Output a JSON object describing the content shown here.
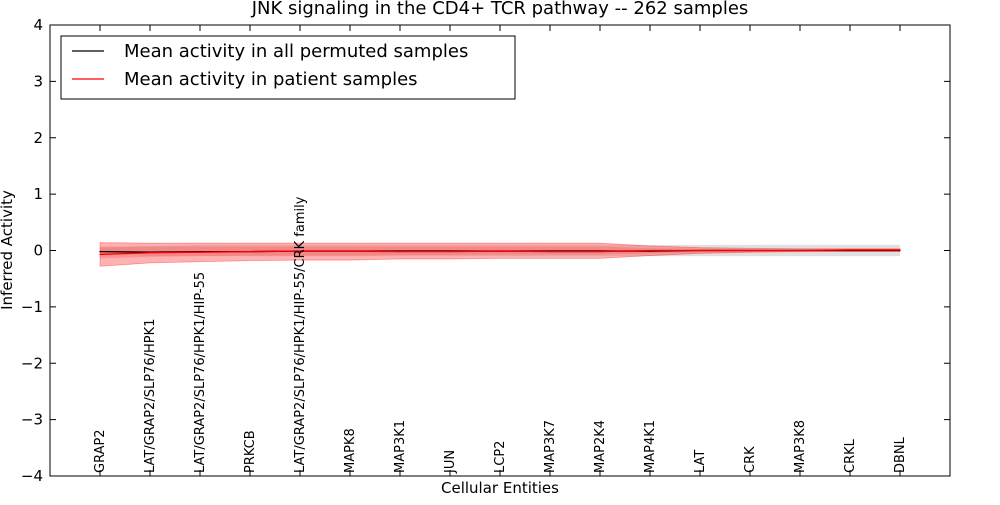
{
  "chart_data": {
    "type": "line",
    "title": "JNK signaling in the CD4+ TCR pathway -- 262 samples",
    "xlabel": "Cellular Entities",
    "ylabel": "Inferred Activity",
    "ylim": [
      -4,
      4
    ],
    "yticks": [
      -4,
      -3,
      -2,
      -1,
      0,
      1,
      2,
      3,
      4
    ],
    "ytick_labels": [
      "−4",
      "−3",
      "−2",
      "−1",
      "0",
      "1",
      "2",
      "3",
      "4"
    ],
    "legend_position": "top-left",
    "grid": false,
    "categories": [
      "GRAP2",
      "LAT/GRAP2/SLP76/HPK1",
      "LAT/GRAP2/SLP76/HPK1/HIP-55",
      "PRKCB",
      "LAT/GRAP2/SLP76/HPK1/HIP-55/CRK family",
      "MAPK8",
      "MAP3K1",
      "JUN",
      "LCP2",
      "MAP3K7",
      "MAP2K4",
      "MAP4K1",
      "LAT",
      "CRK",
      "MAP3K8",
      "CRKL",
      "DBNL"
    ],
    "series": [
      {
        "name": "Mean activity in all permuted samples",
        "color": "#000000",
        "values": [
          -0.02,
          -0.03,
          -0.02,
          -0.02,
          -0.01,
          -0.01,
          -0.01,
          -0.01,
          -0.01,
          -0.01,
          -0.01,
          -0.01,
          0.0,
          0.0,
          0.0,
          0.0,
          0.0
        ],
        "band_lower": [
          -0.05,
          -0.1,
          -0.1,
          -0.1,
          -0.1,
          -0.1,
          -0.1,
          -0.1,
          -0.1,
          -0.1,
          -0.1,
          -0.1,
          -0.1,
          -0.1,
          -0.1,
          -0.1,
          -0.1
        ],
        "band_upper": [
          0.05,
          0.08,
          0.1,
          0.1,
          0.1,
          0.1,
          0.1,
          0.1,
          0.1,
          0.1,
          0.1,
          0.1,
          0.1,
          0.1,
          0.1,
          0.1,
          0.1
        ],
        "band_color": "#bbbbbb"
      },
      {
        "name": "Mean activity in patient samples",
        "color": "#ff0000",
        "values": [
          -0.07,
          -0.04,
          -0.03,
          -0.02,
          -0.01,
          -0.01,
          -0.02,
          -0.02,
          -0.01,
          -0.02,
          -0.02,
          0.0,
          0.0,
          0.0,
          0.0,
          0.01,
          0.01
        ],
        "band_lower": [
          -0.28,
          -0.22,
          -0.2,
          -0.18,
          -0.17,
          -0.17,
          -0.15,
          -0.15,
          -0.14,
          -0.14,
          -0.14,
          -0.09,
          -0.05,
          -0.03,
          -0.02,
          -0.02,
          -0.02
        ],
        "band_upper": [
          0.14,
          0.13,
          0.13,
          0.13,
          0.13,
          0.13,
          0.13,
          0.13,
          0.13,
          0.13,
          0.13,
          0.08,
          0.05,
          0.04,
          0.03,
          0.03,
          0.03
        ],
        "inner_band_lower": [
          -0.14,
          -0.11,
          -0.1,
          -0.09,
          -0.09,
          -0.09,
          -0.08,
          -0.08,
          -0.07,
          -0.07,
          -0.07,
          -0.05,
          -0.03,
          -0.02,
          -0.01,
          -0.01,
          -0.01
        ],
        "inner_band_upper": [
          0.07,
          0.07,
          0.07,
          0.07,
          0.07,
          0.07,
          0.07,
          0.07,
          0.07,
          0.07,
          0.07,
          0.04,
          0.03,
          0.02,
          0.02,
          0.02,
          0.02
        ],
        "band_color": "#ff5555"
      }
    ]
  }
}
